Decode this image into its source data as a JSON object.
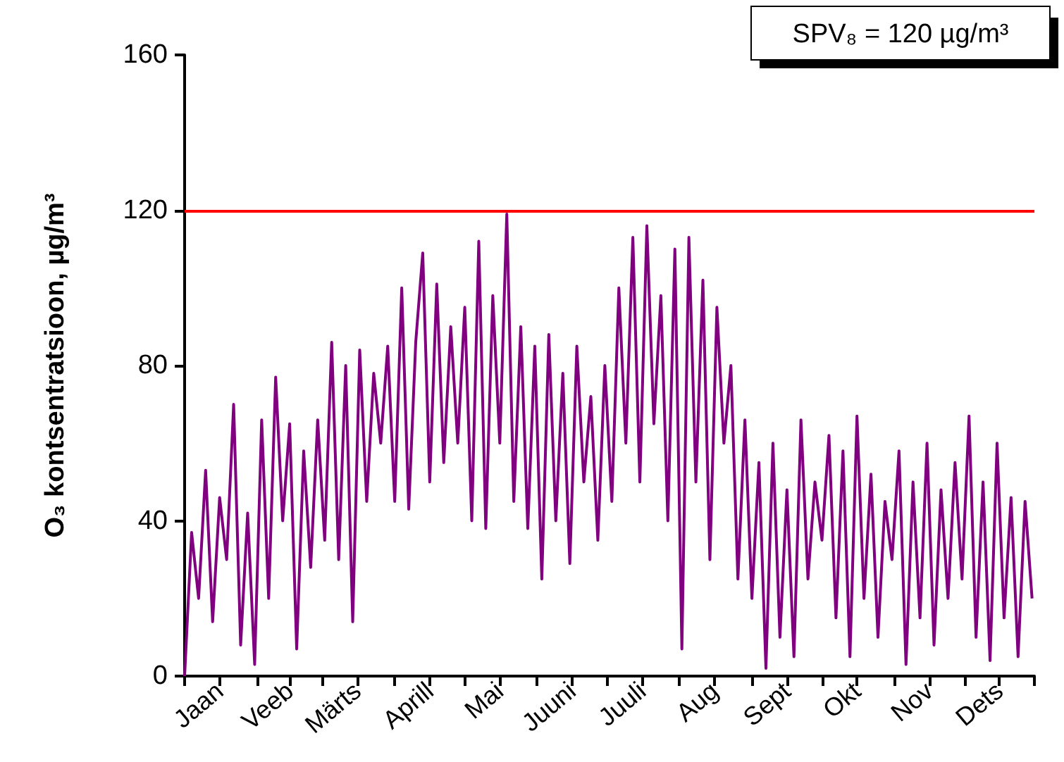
{
  "chart_data": {
    "type": "line",
    "ylabel": "O₃ kontsentratsioon, µg/m³",
    "x": [
      "--01-01",
      "--01-04",
      "--01-07",
      "--01-10",
      "--01-13",
      "--01-16",
      "--01-19",
      "--01-22",
      "--01-25",
      "--01-28",
      "--01-31",
      "--02-03",
      "--02-06",
      "--02-09",
      "--02-12",
      "--02-15",
      "--02-18",
      "--02-21",
      "--02-24",
      "--02-27",
      "--03-02",
      "--03-05",
      "--03-08",
      "--03-11",
      "--03-14",
      "--03-17",
      "--03-20",
      "--03-23",
      "--03-26",
      "--03-29",
      "--04-01",
      "--04-04",
      "--04-07",
      "--04-10",
      "--04-13",
      "--04-16",
      "--04-19",
      "--04-22",
      "--04-25",
      "--04-28",
      "--05-01",
      "--05-04",
      "--05-07",
      "--05-10",
      "--05-13",
      "--05-16",
      "--05-19",
      "--05-22",
      "--05-25",
      "--05-28",
      "--05-31",
      "--06-03",
      "--06-06",
      "--06-09",
      "--06-12",
      "--06-15",
      "--06-18",
      "--06-21",
      "--06-24",
      "--06-27",
      "--06-30",
      "--07-03",
      "--07-06",
      "--07-09",
      "--07-12",
      "--07-15",
      "--07-18",
      "--07-21",
      "--07-24",
      "--07-27",
      "--07-30",
      "--08-02",
      "--08-05",
      "--08-08",
      "--08-11",
      "--08-14",
      "--08-17",
      "--08-20",
      "--08-23",
      "--08-26",
      "--08-29",
      "--09-01",
      "--09-04",
      "--09-07",
      "--09-10",
      "--09-13",
      "--09-16",
      "--09-19",
      "--09-22",
      "--09-25",
      "--09-28",
      "--10-01",
      "--10-04",
      "--10-07",
      "--10-10",
      "--10-13",
      "--10-16",
      "--10-19",
      "--10-22",
      "--10-25",
      "--10-28",
      "--10-31",
      "--11-03",
      "--11-06",
      "--11-09",
      "--11-12",
      "--11-15",
      "--11-18",
      "--11-21",
      "--11-24",
      "--11-27",
      "--11-30",
      "--12-03",
      "--12-06",
      "--12-09",
      "--12-12",
      "--12-15",
      "--12-18",
      "--12-21",
      "--12-24",
      "--12-27",
      "--12-30"
    ],
    "series": [
      {
        "color": "#800080",
        "values": [
          0,
          37,
          20,
          53,
          14,
          46,
          30,
          70,
          8,
          42,
          3,
          66,
          20,
          77,
          40,
          65,
          7,
          58,
          28,
          66,
          35,
          86,
          30,
          80,
          14,
          84,
          45,
          78,
          60,
          85,
          45,
          100,
          43,
          86,
          109,
          50,
          101,
          55,
          90,
          60,
          95,
          40,
          112,
          38,
          98,
          60,
          119,
          45,
          90,
          38,
          85,
          25,
          88,
          40,
          78,
          29,
          85,
          50,
          72,
          35,
          80,
          45,
          100,
          60,
          113,
          50,
          116,
          65,
          98,
          40,
          110,
          7,
          113,
          50,
          102,
          30,
          95,
          60,
          80,
          25,
          66,
          20,
          55,
          2,
          60,
          10,
          48,
          5,
          66,
          25,
          50,
          35,
          62,
          15,
          58,
          5,
          67,
          20,
          52,
          10,
          45,
          30,
          58,
          3,
          50,
          15,
          60,
          8,
          48,
          20,
          55,
          25,
          67,
          10,
          50,
          4,
          60,
          15,
          46,
          5,
          45,
          20
        ]
      }
    ],
    "xlim": [
      "--01-01",
      "--12-31"
    ],
    "xticks": [
      {
        "value": "--01-01",
        "label": null
      },
      {
        "value": "--01-16",
        "label": "Jaan"
      },
      {
        "value": "--02-01",
        "label": null
      },
      {
        "value": "--02-15",
        "label": "Veeb"
      },
      {
        "value": "--03-01",
        "label": null
      },
      {
        "value": "--03-16",
        "label": "Märts"
      },
      {
        "value": "--04-01",
        "label": null
      },
      {
        "value": "--04-16",
        "label": "Aprill"
      },
      {
        "value": "--05-01",
        "label": null
      },
      {
        "value": "--05-16",
        "label": "Mai"
      },
      {
        "value": "--06-01",
        "label": null
      },
      {
        "value": "--06-16",
        "label": "Juuni"
      },
      {
        "value": "--07-01",
        "label": null
      },
      {
        "value": "--07-16",
        "label": "Juuli"
      },
      {
        "value": "--08-01",
        "label": null
      },
      {
        "value": "--08-16",
        "label": "Aug"
      },
      {
        "value": "--09-01",
        "label": null
      },
      {
        "value": "--09-16",
        "label": "Sept"
      },
      {
        "value": "--10-01",
        "label": null
      },
      {
        "value": "--10-16",
        "label": "Okt"
      },
      {
        "value": "--11-01",
        "label": null
      },
      {
        "value": "--11-16",
        "label": "Nov"
      },
      {
        "value": "--12-01",
        "label": null
      },
      {
        "value": "--12-16",
        "label": "Dets"
      },
      {
        "value": "--12-31",
        "label": null
      }
    ],
    "ylim": [
      0,
      160
    ],
    "yticks": [
      0,
      40,
      80,
      120,
      160
    ],
    "ref_lines": [
      {
        "axis": "y",
        "value": 120,
        "color": "#ff0000",
        "line_style": "solid"
      }
    ],
    "annotations": [
      "SPV₈ = 120 µg/m³"
    ],
    "grid": false,
    "marker": "none",
    "line_style": "solid"
  }
}
